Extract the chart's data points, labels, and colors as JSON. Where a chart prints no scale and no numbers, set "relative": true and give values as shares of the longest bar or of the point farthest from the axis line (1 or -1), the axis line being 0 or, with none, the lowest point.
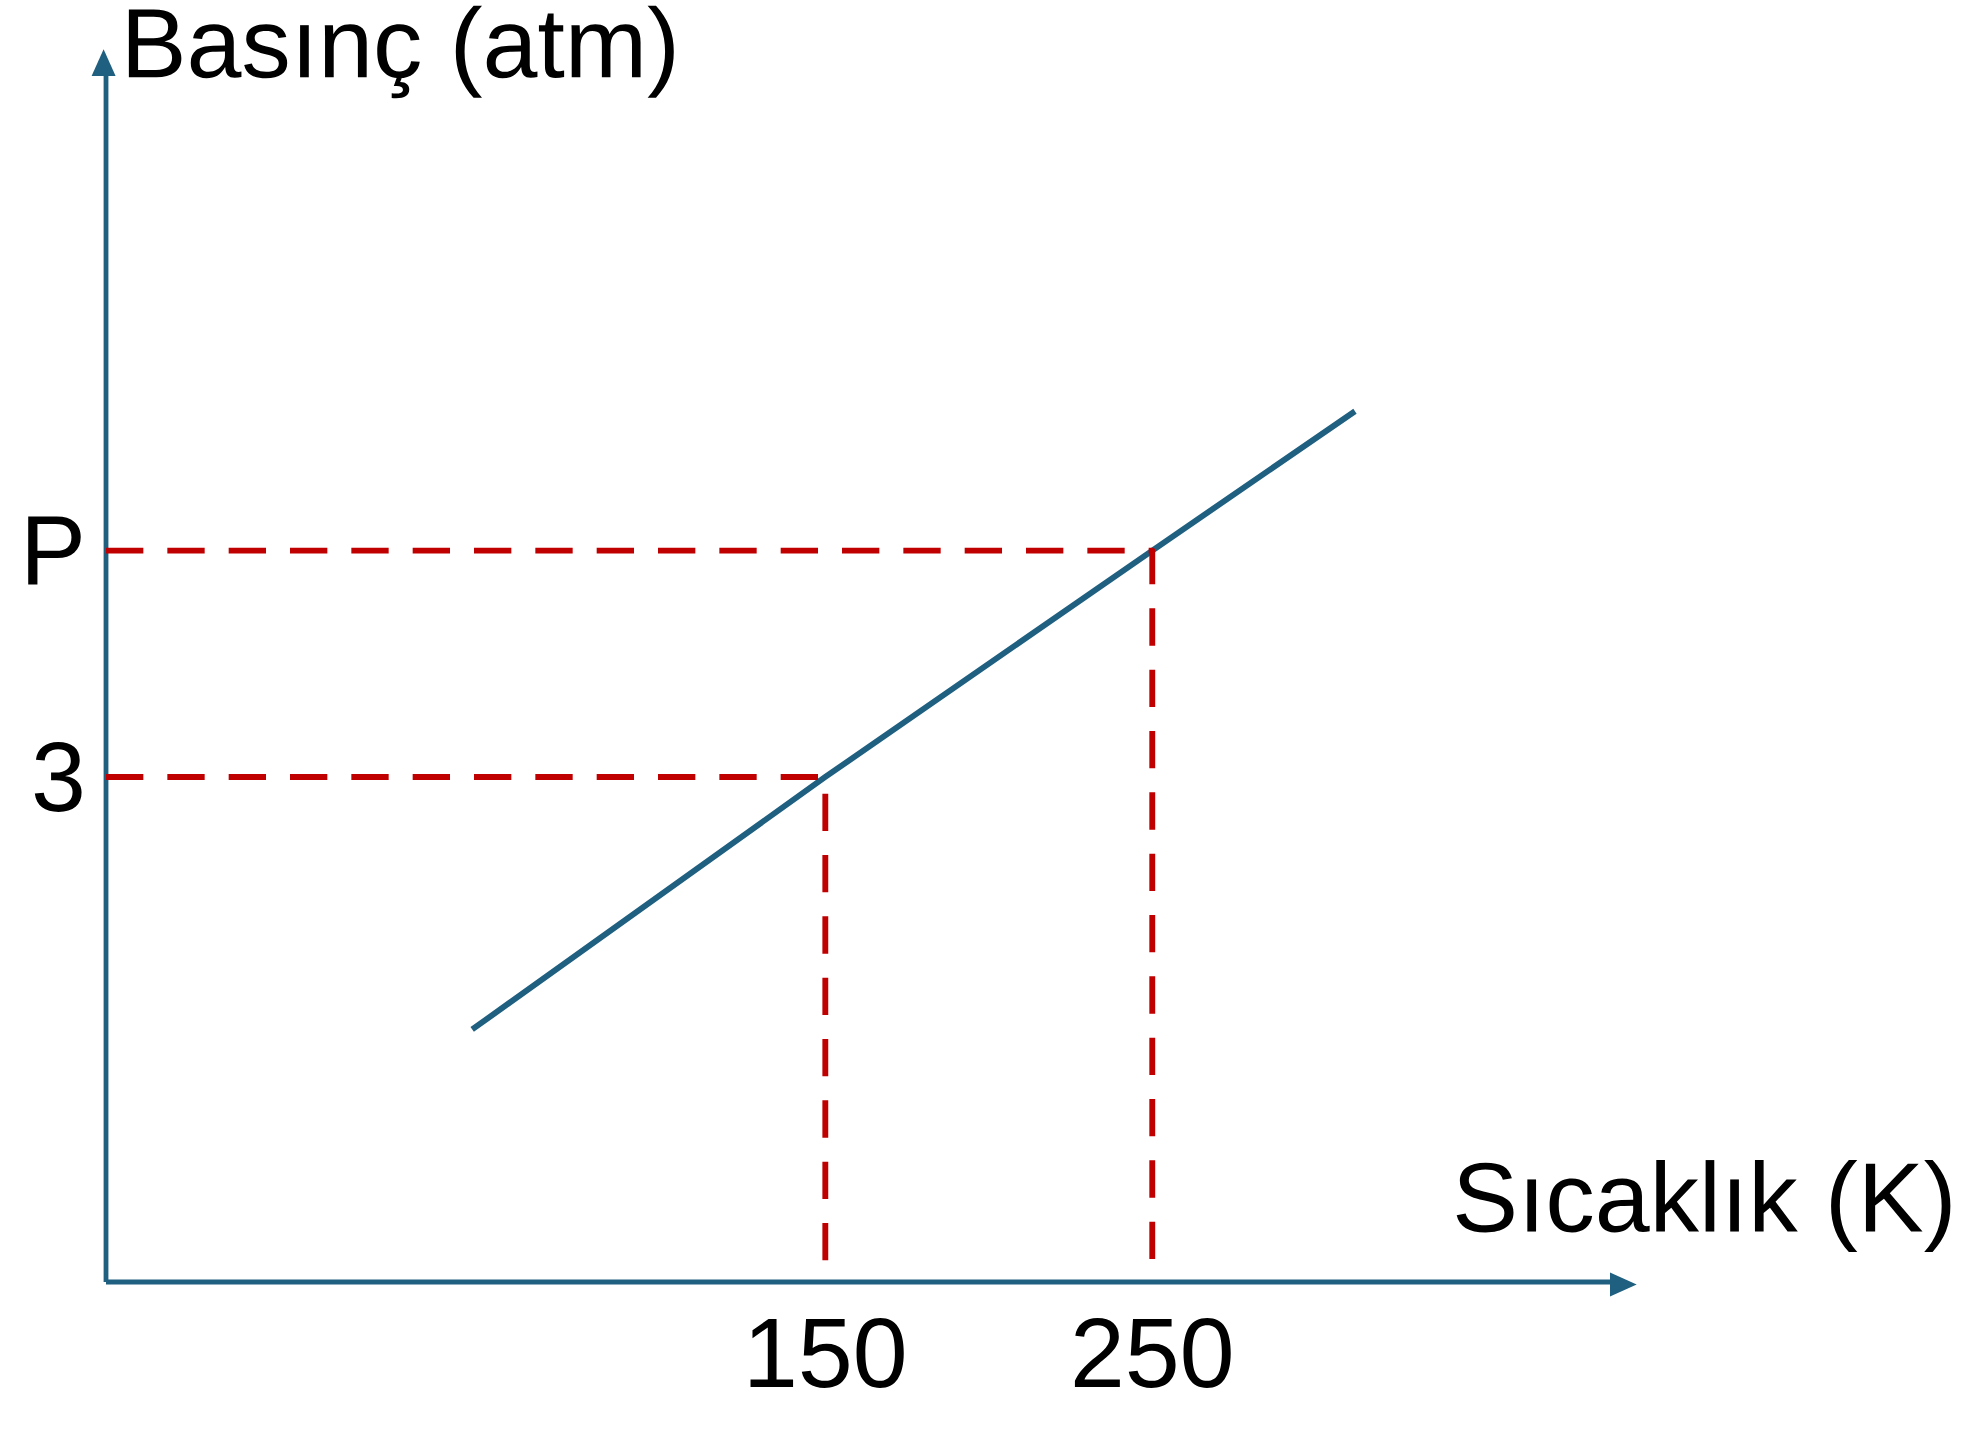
{
  "chart_data": {
    "type": "line",
    "xlabel": "Sıcaklık (K)",
    "ylabel": "Basınç (atm)",
    "relative": true,
    "xlim": [
      -70,
      390
    ],
    "xticks": [
      150,
      250
    ],
    "annotations": [
      {
        "text": "3",
        "x": -70,
        "y": 0.58
      },
      {
        "text": "P",
        "x": -70,
        "y": 0.84
      }
    ],
    "grid": false,
    "marker": "none",
    "series": [
      {
        "color": "#1f5f80",
        "line_style": "solid",
        "x": [
          42,
          150,
          250,
          312
        ],
        "values": [
          0.29,
          0.58,
          0.84,
          1
        ]
      },
      {
        "color": "#c00000",
        "line_style": "dashed",
        "x": [
          -70,
          150,
          150
        ],
        "values": [
          0.58,
          0.58,
          0
        ]
      },
      {
        "color": "#c00000",
        "line_style": "dashed",
        "x": [
          -70,
          250,
          250
        ],
        "values": [
          0.84,
          0.84,
          0
        ]
      }
    ]
  }
}
